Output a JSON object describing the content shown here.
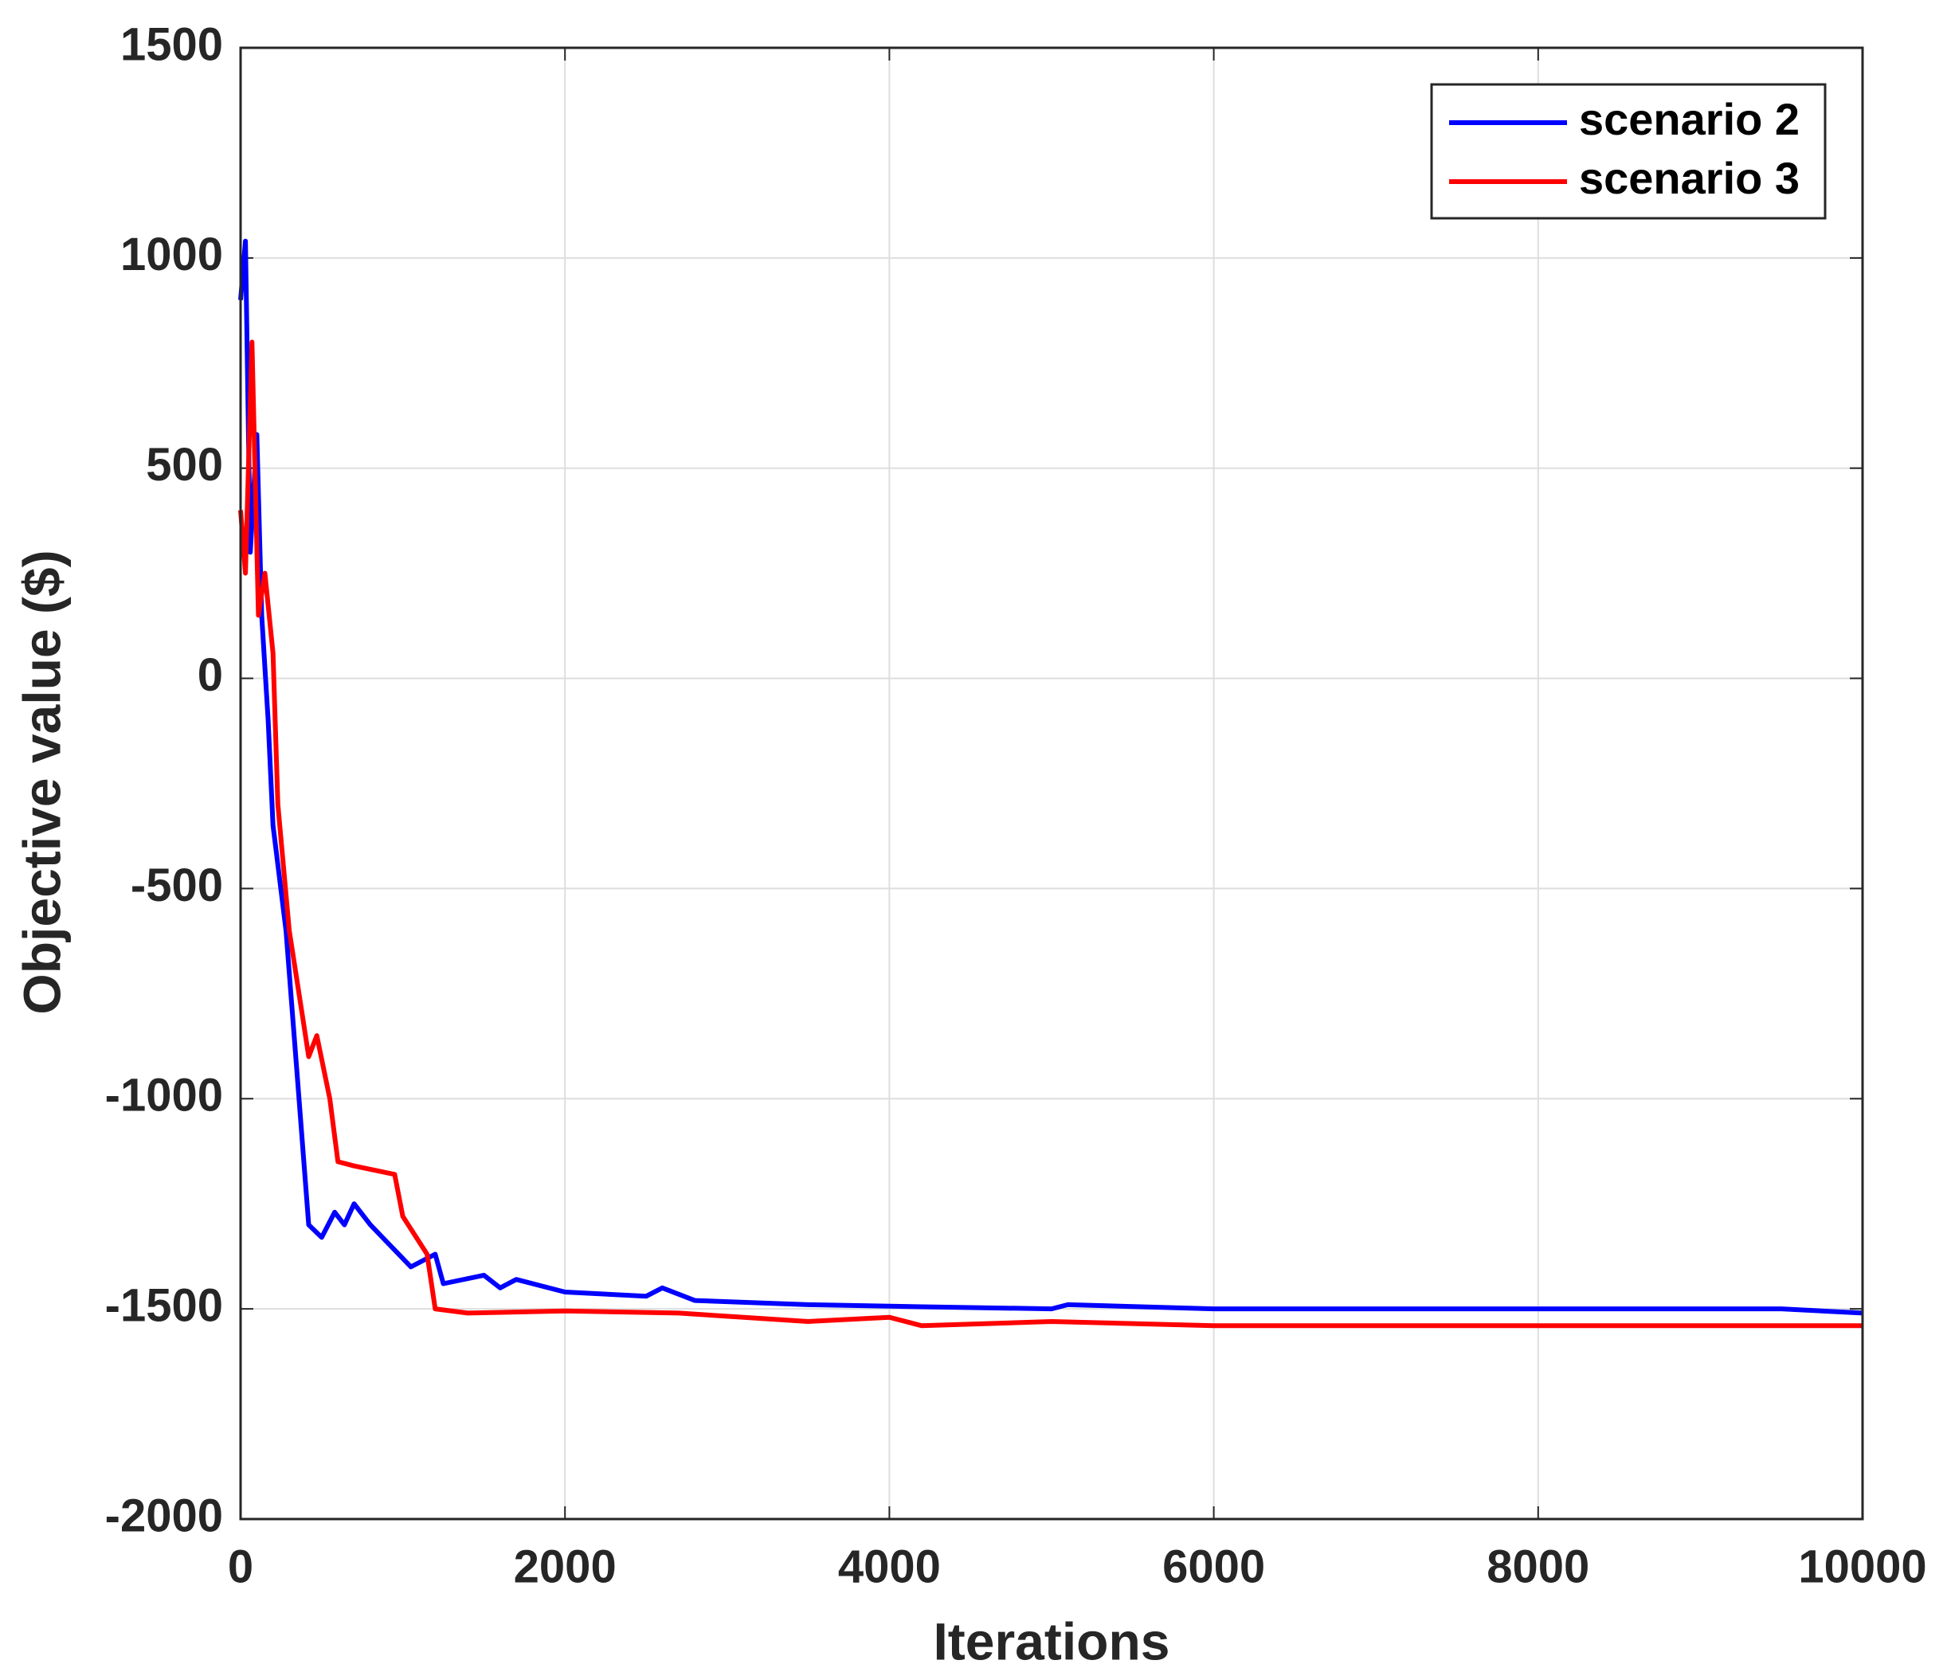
{
  "chart_data": {
    "type": "line",
    "xlabel": "Iterations",
    "ylabel": "Objective value ($)",
    "xlim": [
      0,
      10000
    ],
    "xticks": [
      0,
      2000,
      4000,
      6000,
      8000,
      10000
    ],
    "ylim": [
      -2000,
      1500
    ],
    "yticks": [
      -2000,
      -1500,
      -1000,
      -500,
      0,
      500,
      1000,
      1500
    ],
    "grid": true,
    "legend": "upper right",
    "series": [
      {
        "name": "scenario 2",
        "color": "#0000ff",
        "x": [
          0,
          30,
          60,
          100,
          130,
          170,
          200,
          280,
          350,
          420,
          500,
          580,
          640,
          700,
          800,
          900,
          1050,
          1200,
          1250,
          1500,
          1600,
          1700,
          2000,
          2500,
          2600,
          2800,
          3500,
          4200,
          5000,
          5100,
          6000,
          8000,
          9500,
          10000
        ],
        "values": [
          900,
          1040,
          300,
          580,
          150,
          -100,
          -350,
          -600,
          -950,
          -1300,
          -1330,
          -1270,
          -1300,
          -1250,
          -1300,
          -1340,
          -1400,
          -1370,
          -1440,
          -1420,
          -1450,
          -1430,
          -1460,
          -1470,
          -1450,
          -1480,
          -1490,
          -1495,
          -1500,
          -1490,
          -1500,
          -1500,
          -1500,
          -1510
        ]
      },
      {
        "name": "scenario 3",
        "color": "#ff0000",
        "x": [
          0,
          30,
          70,
          110,
          150,
          200,
          230,
          300,
          380,
          420,
          470,
          550,
          600,
          700,
          950,
          1000,
          1150,
          1200,
          1400,
          2000,
          2700,
          3500,
          4000,
          4200,
          5000,
          6000,
          10000
        ],
        "values": [
          400,
          250,
          800,
          150,
          250,
          60,
          -300,
          -600,
          -800,
          -900,
          -850,
          -1000,
          -1150,
          -1160,
          -1180,
          -1280,
          -1370,
          -1500,
          -1510,
          -1505,
          -1510,
          -1530,
          -1520,
          -1540,
          -1530,
          -1540,
          -1540
        ]
      }
    ]
  }
}
